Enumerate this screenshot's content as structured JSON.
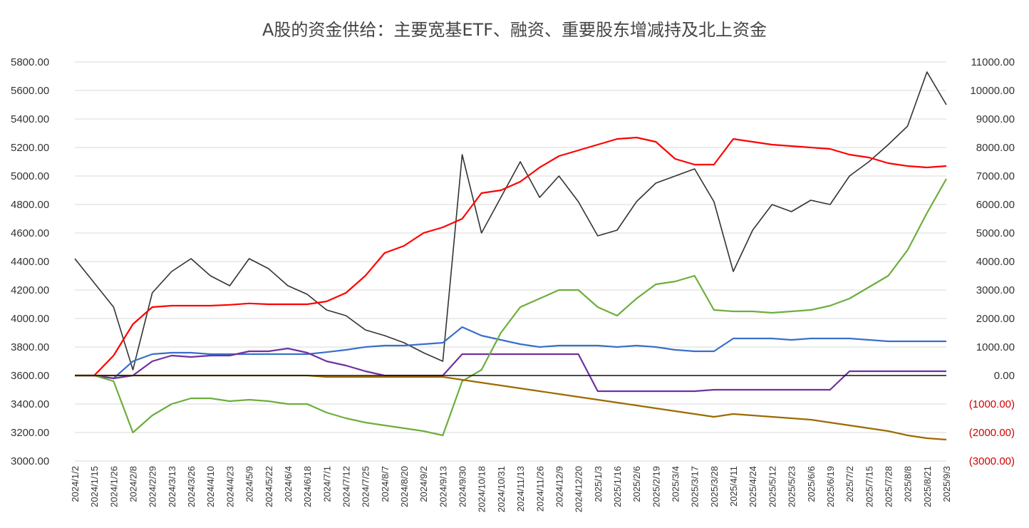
{
  "chart_data": {
    "type": "line",
    "title": "A股的资金供给：主要宽基ETF、融资、重要股东增减持及北上资金",
    "xlabel": "",
    "ylabel_left": "",
    "ylabel_right": "",
    "ylim_left": [
      3000,
      5800
    ],
    "ylim_right": [
      -3000,
      11000
    ],
    "y_ticks_left": [
      "3000.00",
      "3200.00",
      "3400.00",
      "3600.00",
      "3800.00",
      "4000.00",
      "4200.00",
      "4400.00",
      "4600.00",
      "4800.00",
      "5000.00",
      "5200.00",
      "5400.00",
      "5600.00",
      "5800.00"
    ],
    "y_ticks_right": [
      "(3000.00)",
      "(2000.00)",
      "(1000.00)",
      "0.00",
      "1000.00",
      "2000.00",
      "3000.00",
      "4000.00",
      "5000.00",
      "6000.00",
      "7000.00",
      "8000.00",
      "9000.00",
      "10000.00",
      "11000.00"
    ],
    "categories": [
      "2024/1/2",
      "2024/1/15",
      "2024/1/26",
      "2024/2/8",
      "2024/2/29",
      "2024/3/13",
      "2024/3/26",
      "2024/4/10",
      "2024/4/23",
      "2024/5/9",
      "2024/5/22",
      "2024/6/4",
      "2024/6/18",
      "2024/7/1",
      "2024/7/12",
      "2024/7/25",
      "2024/8/7",
      "2024/8/20",
      "2024/9/2",
      "2024/9/13",
      "2024/9/30",
      "2024/10/18",
      "2024/10/31",
      "2024/11/13",
      "2024/11/26",
      "2024/12/9",
      "2024/12/20",
      "2025/1/3",
      "2025/1/16",
      "2025/2/6",
      "2025/2/19",
      "2025/3/4",
      "2025/3/17",
      "2025/3/28",
      "2025/4/11",
      "2025/4/24",
      "2025/5/12",
      "2025/5/23",
      "2025/6/6",
      "2025/6/19",
      "2025/7/2",
      "2025/7/15",
      "2025/7/28",
      "2025/8/8",
      "2025/8/21",
      "2025/9/3"
    ],
    "grid": true,
    "legend": "none",
    "series": [
      {
        "axis": "left",
        "color": "#333333",
        "values": [
          4420,
          4250,
          4080,
          3640,
          4180,
          4330,
          4420,
          4300,
          4230,
          4420,
          4350,
          4230,
          4170,
          4060,
          4020,
          3920,
          3880,
          3830,
          3760,
          3700,
          5150,
          4600,
          4850,
          5100,
          4850,
          5000,
          4820,
          4580,
          4620,
          4820,
          4950,
          5000,
          5050,
          4820,
          4330,
          4620,
          4800,
          4750,
          4830,
          4800,
          5000,
          5100,
          5220,
          5350,
          5730,
          5500
        ]
      },
      {
        "axis": "right",
        "color": "#ff0000",
        "values": [
          0,
          0,
          700,
          1800,
          2400,
          2450,
          2450,
          2450,
          2480,
          2530,
          2500,
          2500,
          2500,
          2600,
          2900,
          3500,
          4300,
          4550,
          5000,
          5200,
          5500,
          6400,
          6500,
          6800,
          7300,
          7700,
          7900,
          8100,
          8300,
          8350,
          8200,
          7600,
          7400,
          7400,
          8300,
          8200,
          8100,
          8050,
          8000,
          7950,
          7750,
          7650,
          7450,
          7350,
          7300,
          7350
        ]
      },
      {
        "axis": "right",
        "color": "#3a6fc9",
        "values": [
          0,
          0,
          -100,
          500,
          750,
          800,
          800,
          750,
          750,
          750,
          750,
          750,
          750,
          820,
          900,
          1000,
          1050,
          1050,
          1100,
          1150,
          1700,
          1400,
          1250,
          1100,
          1000,
          1050,
          1050,
          1050,
          1000,
          1050,
          1000,
          900,
          850,
          850,
          1300,
          1300,
          1300,
          1250,
          1300,
          1300,
          1300,
          1250,
          1200,
          1200,
          1200,
          1200
        ]
      },
      {
        "axis": "right",
        "color": "#7030a0",
        "values": [
          0,
          0,
          -100,
          0,
          500,
          700,
          650,
          700,
          700,
          850,
          850,
          950,
          800,
          500,
          350,
          150,
          0,
          0,
          0,
          0,
          750,
          750,
          750,
          750,
          750,
          750,
          750,
          -550,
          -550,
          -550,
          -550,
          -550,
          -550,
          -500,
          -500,
          -500,
          -500,
          -500,
          -500,
          -500,
          150,
          150,
          150,
          150,
          150,
          150
        ]
      },
      {
        "axis": "right",
        "color": "#6cae3c",
        "values": [
          0,
          0,
          -200,
          -2000,
          -1400,
          -1000,
          -800,
          -800,
          -900,
          -850,
          -900,
          -1000,
          -1000,
          -1300,
          -1500,
          -1650,
          -1750,
          -1850,
          -1950,
          -2100,
          -200,
          200,
          1500,
          2400,
          2700,
          3000,
          3000,
          2400,
          2100,
          2700,
          3200,
          3300,
          3500,
          2300,
          2250,
          2250,
          2200,
          2250,
          2300,
          2450,
          2700,
          3100,
          3500,
          4400,
          5700,
          6900
        ]
      },
      {
        "axis": "right",
        "color": "#9c6a00",
        "values": [
          0,
          0,
          0,
          0,
          0,
          0,
          0,
          0,
          0,
          0,
          0,
          0,
          0,
          -50,
          -50,
          -50,
          -50,
          -50,
          -50,
          -50,
          -150,
          -250,
          -350,
          -450,
          -550,
          -650,
          -750,
          -850,
          -950,
          -1050,
          -1150,
          -1250,
          -1350,
          -1450,
          -1350,
          -1400,
          -1450,
          -1500,
          -1550,
          -1650,
          -1750,
          -1850,
          -1950,
          -2100,
          -2200,
          -2250
        ]
      }
    ]
  }
}
